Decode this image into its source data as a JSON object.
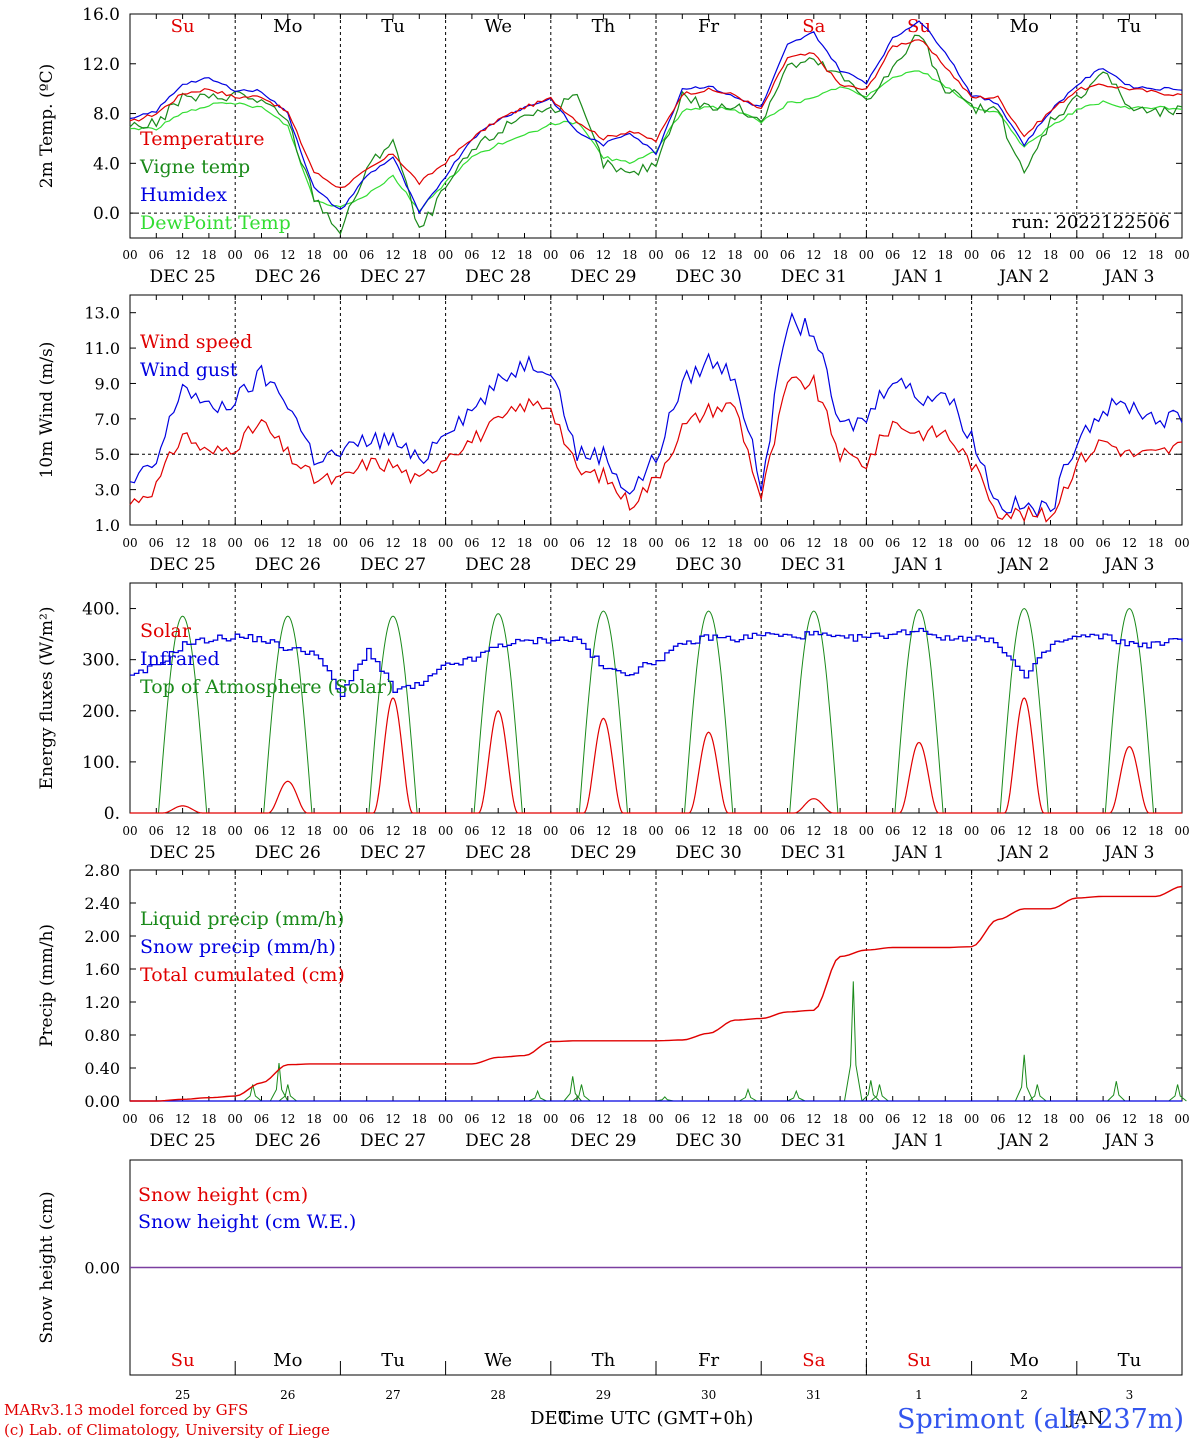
{
  "panels_meta": {
    "days_top": [
      "Su",
      "Mo",
      "Tu",
      "We",
      "Th",
      "Fr",
      "Sa",
      "Su",
      "Mo",
      "Tu"
    ],
    "days_top_colors": [
      "#e00000",
      "#000000",
      "#000000",
      "#000000",
      "#000000",
      "#000000",
      "#e00000",
      "#e00000",
      "#000000",
      "#000000"
    ],
    "date_labels": [
      "DEC 25",
      "DEC 26",
      "DEC 27",
      "DEC 28",
      "DEC 29",
      "DEC 30",
      "DEC 31",
      "JAN  1",
      "JAN  2",
      "JAN  3"
    ],
    "hour_labels": [
      "00",
      "06",
      "12",
      "18"
    ],
    "hour_end": "00",
    "bottom_day_numbers": [
      "25",
      "26",
      "27",
      "28",
      "29",
      "30",
      "31",
      "1",
      "2",
      "3"
    ],
    "bottom_month_left": "DEC",
    "bottom_month_right": "JAN"
  },
  "footer": {
    "model_line": "MARv3.13 model forced by GFS",
    "lab_line": "(c) Lab. of Climatology, University of Liege",
    "time_axis": "Time UTC (GMT+0h)",
    "station": "Sprimont (alt. 237m)"
  },
  "chart_data": [
    {
      "type": "line",
      "ylabel": "2m Temp. (ºC)",
      "ylim": [
        -2,
        16
      ],
      "yticks": [
        "16.0",
        "12.0",
        "8.0",
        "4.0",
        "0.0"
      ],
      "ytick_values": [
        16,
        12,
        8,
        4,
        0
      ],
      "annotation": "run: 2022122506",
      "legend": [
        "Temperature",
        "Vigne temp",
        "Humidex",
        "DewPoint Temp"
      ],
      "legend_colors": [
        "#e00000",
        "#1a8a1a",
        "#0000e0",
        "#33dd33"
      ],
      "x_hours": [
        0,
        6,
        12,
        18,
        24,
        30,
        36,
        42,
        48,
        54,
        60,
        66,
        72,
        78,
        84,
        90,
        96,
        102,
        108,
        114,
        120,
        126,
        132,
        138,
        144,
        150,
        156,
        162,
        168,
        174,
        180,
        186,
        192,
        198,
        204,
        210,
        216,
        222,
        228,
        234,
        240
      ],
      "series": [
        {
          "name": "Temperature",
          "color": "#e00000",
          "values": [
            7.3,
            8.0,
            9.6,
            10.0,
            9.3,
            9.4,
            8.1,
            3.3,
            2.0,
            3.4,
            4.8,
            2.4,
            4.1,
            6.0,
            7.5,
            8.5,
            9.2,
            7.4,
            6.0,
            6.6,
            5.8,
            9.6,
            9.9,
            9.5,
            8.3,
            12.5,
            12.8,
            10.3,
            9.9,
            13.4,
            14.0,
            11.8,
            9.3,
            9.3,
            6.2,
            8.2,
            9.9,
            10.3,
            10.0,
            9.7,
            9.5
          ]
        },
        {
          "name": "Vigne temp",
          "color": "#1a8a1a",
          "values": [
            7.0,
            7.2,
            9.3,
            9.2,
            9.6,
            9.0,
            7.3,
            1.3,
            -1.5,
            3.5,
            6.0,
            -1.5,
            2.0,
            5.0,
            6.5,
            8.0,
            8.3,
            9.2,
            4.0,
            3.0,
            4.0,
            9.5,
            8.5,
            8.5,
            7.5,
            11.8,
            12.2,
            11.0,
            9.2,
            11.5,
            14.5,
            10.0,
            8.5,
            8.2,
            3.0,
            7.5,
            9.2,
            11.5,
            8.5,
            8.0,
            8.3
          ]
        },
        {
          "name": "Humidex",
          "color": "#0000e0",
          "values": [
            7.5,
            8.2,
            10.4,
            10.8,
            9.9,
            9.8,
            8.0,
            2.0,
            0.2,
            3.0,
            4.5,
            0.0,
            3.0,
            6.0,
            7.5,
            8.5,
            9.2,
            6.5,
            5.5,
            6.5,
            4.8,
            10.0,
            10.2,
            9.3,
            8.5,
            13.5,
            14.5,
            11.5,
            10.5,
            14.0,
            15.5,
            13.0,
            9.5,
            8.8,
            5.5,
            8.2,
            10.3,
            11.7,
            10.2,
            10.0,
            10.0
          ]
        },
        {
          "name": "DewPoint Temp",
          "color": "#33dd33",
          "values": [
            6.8,
            6.8,
            8.0,
            8.7,
            8.8,
            8.5,
            7.0,
            1.0,
            0.5,
            1.5,
            3.0,
            0.2,
            2.5,
            4.5,
            5.5,
            6.2,
            7.2,
            7.3,
            4.5,
            4.0,
            5.0,
            8.2,
            8.6,
            8.3,
            7.3,
            8.8,
            9.2,
            10.2,
            9.3,
            11.0,
            11.5,
            10.2,
            8.6,
            8.0,
            5.3,
            7.0,
            8.3,
            8.9,
            8.4,
            8.5,
            8.4
          ]
        }
      ]
    },
    {
      "type": "line",
      "ylabel": "10m Wind (m/s)",
      "ylim": [
        1,
        14
      ],
      "yticks": [
        "13.0",
        "11.0",
        "9.0",
        "7.0",
        "5.0",
        "3.0",
        "1.0"
      ],
      "ytick_values": [
        13,
        11,
        9,
        7,
        5,
        3,
        1
      ],
      "legend": [
        "Wind speed",
        "Wind gust"
      ],
      "legend_colors": [
        "#e00000",
        "#0000e0"
      ],
      "x_hours": [
        0,
        6,
        12,
        18,
        24,
        30,
        36,
        42,
        48,
        54,
        60,
        66,
        72,
        78,
        84,
        90,
        96,
        102,
        108,
        114,
        120,
        126,
        132,
        138,
        144,
        150,
        156,
        162,
        168,
        174,
        180,
        186,
        192,
        198,
        204,
        210,
        216,
        222,
        228,
        234,
        240
      ],
      "series": [
        {
          "name": "Wind speed",
          "color": "#e00000",
          "values": [
            2.2,
            3.2,
            6.2,
            5.0,
            5.5,
            6.8,
            5.0,
            3.6,
            3.5,
            4.5,
            4.4,
            3.4,
            5.0,
            5.8,
            6.8,
            7.8,
            7.8,
            4.0,
            3.8,
            2.2,
            3.6,
            6.5,
            7.5,
            7.8,
            2.5,
            9.0,
            9.0,
            5.0,
            4.5,
            6.8,
            6.2,
            6.2,
            4.5,
            1.8,
            1.6,
            1.5,
            4.5,
            5.8,
            5.0,
            5.0,
            5.5
          ]
        },
        {
          "name": "Wind gust",
          "color": "#0000e0",
          "values": [
            3.2,
            4.5,
            9.0,
            7.5,
            8.0,
            9.5,
            8.0,
            4.8,
            5.0,
            5.8,
            5.8,
            4.5,
            6.5,
            7.5,
            9.0,
            10.2,
            10.0,
            5.0,
            5.0,
            2.8,
            4.8,
            9.0,
            10.3,
            9.5,
            3.2,
            12.5,
            12.0,
            6.5,
            7.0,
            9.5,
            8.2,
            8.5,
            6.0,
            2.2,
            2.0,
            1.8,
            6.0,
            7.5,
            7.8,
            7.0,
            7.0
          ]
        }
      ]
    },
    {
      "type": "line",
      "ylabel": "Energy fluxes (W/m²)",
      "ylim": [
        0,
        450
      ],
      "yticks": [
        "400.",
        "300.",
        "200.",
        "100.",
        "0."
      ],
      "ytick_values": [
        400,
        300,
        200,
        100,
        0
      ],
      "legend": [
        "Solar",
        "Infrared",
        "Top of Atmosphere (Solar)"
      ],
      "legend_colors": [
        "#e00000",
        "#0000e0",
        "#1a8a1a"
      ],
      "toa_daily_peak": [
        385,
        385,
        385,
        390,
        395,
        395,
        395,
        398,
        400,
        400
      ],
      "solar_daily_peak": [
        14,
        62,
        225,
        200,
        185,
        158,
        28,
        138,
        225,
        130
      ],
      "infrared": {
        "x_hours": [
          0,
          6,
          12,
          18,
          24,
          30,
          36,
          42,
          48,
          54,
          60,
          66,
          72,
          78,
          84,
          90,
          96,
          102,
          108,
          114,
          120,
          126,
          132,
          138,
          144,
          150,
          156,
          162,
          168,
          174,
          180,
          186,
          192,
          198,
          204,
          210,
          216,
          222,
          228,
          234,
          240
        ],
        "values": [
          265,
          290,
          330,
          340,
          345,
          340,
          320,
          315,
          230,
          320,
          240,
          250,
          290,
          300,
          330,
          335,
          340,
          340,
          280,
          275,
          300,
          330,
          345,
          340,
          350,
          345,
          350,
          340,
          345,
          350,
          360,
          340,
          345,
          330,
          265,
          330,
          345,
          345,
          330,
          330,
          340
        ]
      }
    },
    {
      "type": "line",
      "ylabel": "Precip (mm/h)",
      "ylim": [
        0,
        2.8
      ],
      "yticks": [
        "2.80",
        "2.40",
        "2.00",
        "1.60",
        "1.20",
        "0.80",
        "0.40",
        "0.00"
      ],
      "ytick_values": [
        2.8,
        2.4,
        2.0,
        1.6,
        1.2,
        0.8,
        0.4,
        0.0
      ],
      "legend": [
        "Liquid precip (mm/h)",
        "Snow precip (mm/h)",
        "Total cumulated (cm)"
      ],
      "legend_colors": [
        "#1a8a1a",
        "#0000e0",
        "#e00000"
      ],
      "cumulated": {
        "x_hours": [
          0,
          6,
          12,
          18,
          24,
          30,
          36,
          42,
          48,
          54,
          60,
          66,
          72,
          78,
          84,
          90,
          96,
          102,
          108,
          114,
          120,
          126,
          132,
          138,
          144,
          150,
          156,
          162,
          168,
          174,
          180,
          186,
          192,
          198,
          204,
          210,
          216,
          222,
          228,
          234,
          240
        ],
        "values": [
          0,
          0,
          0.02,
          0.04,
          0.06,
          0.22,
          0.44,
          0.45,
          0.45,
          0.45,
          0.45,
          0.45,
          0.45,
          0.45,
          0.53,
          0.55,
          0.72,
          0.73,
          0.73,
          0.73,
          0.73,
          0.74,
          0.82,
          0.98,
          1.0,
          1.08,
          1.1,
          1.75,
          1.83,
          1.86,
          1.86,
          1.86,
          1.87,
          2.2,
          2.33,
          2.33,
          2.46,
          2.48,
          2.48,
          2.48,
          2.6
        ]
      },
      "liquid_peaks": [
        {
          "hour": 28,
          "value": 0.2
        },
        {
          "hour": 34,
          "value": 0.46
        },
        {
          "hour": 36,
          "value": 0.2
        },
        {
          "hour": 93,
          "value": 0.12
        },
        {
          "hour": 101,
          "value": 0.3
        },
        {
          "hour": 103,
          "value": 0.2
        },
        {
          "hour": 122,
          "value": 0.05
        },
        {
          "hour": 141,
          "value": 0.14
        },
        {
          "hour": 152,
          "value": 0.12
        },
        {
          "hour": 165,
          "value": 1.45
        },
        {
          "hour": 169,
          "value": 0.25
        },
        {
          "hour": 171,
          "value": 0.2
        },
        {
          "hour": 204,
          "value": 0.56
        },
        {
          "hour": 207,
          "value": 0.2
        },
        {
          "hour": 225,
          "value": 0.24
        },
        {
          "hour": 239,
          "value": 0.2
        }
      ]
    },
    {
      "type": "line",
      "ylabel": "Snow height (cm)",
      "ylim": [
        -1,
        1
      ],
      "yticks": [
        "0.00"
      ],
      "ytick_values": [
        0
      ],
      "legend": [
        "Snow height (cm)",
        "Snow height (cm W.E.)"
      ],
      "legend_colors": [
        "#e00000",
        "#0000e0"
      ],
      "series": [
        {
          "name": "Snow height (cm)",
          "color": "#e00000",
          "values": [
            0,
            0
          ]
        },
        {
          "name": "Snow height (cm W.E.)",
          "color": "#0000e0",
          "values": [
            0,
            0
          ]
        }
      ]
    }
  ]
}
